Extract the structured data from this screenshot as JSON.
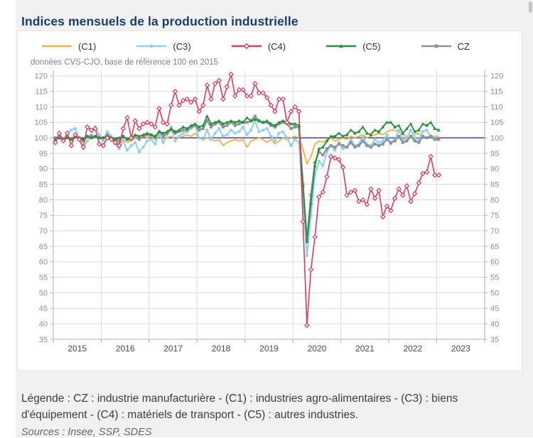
{
  "page": {
    "title": "Indices mensuels de la production industrielle"
  },
  "footer": {
    "legend": "Légende : CZ : industrie manufacturière - (C1) : industries agro-alimentaires - (C3) : biens d'équipement - (C4) : matériels de transport - (C5) : autres industries.",
    "sources": "Sources : Insee, SSP, SDES"
  },
  "scrollbar": {
    "present": true
  },
  "chart_data": {
    "type": "line",
    "subtitle": "données CVS-CJO, base de référence 100 en 2015",
    "x_years": [
      "2015",
      "2016",
      "2017",
      "2018",
      "2019",
      "2020",
      "2021",
      "2022",
      "2023"
    ],
    "months_start": "2015-01",
    "ylim": [
      35,
      121.8
    ],
    "y_tick_min": 35,
    "y_tick_max": 120,
    "y_tick_step": 5,
    "ref_line": {
      "value": 100,
      "color": "#5150ae"
    },
    "grid_color": "#dadada",
    "axis_color": "#b0b0b0",
    "tick_label_color": "#8f8f8f",
    "year_label_color": "#494949",
    "legend_position": "top",
    "draw_order": [
      0,
      1,
      4,
      3,
      2
    ],
    "series": [
      {
        "name": "(C1)",
        "color": "#f7b13c",
        "marker": "none",
        "values": [
          99.5,
          100.0,
          99.0,
          100.0,
          99.5,
          100.5,
          99.5,
          99.0,
          100.0,
          100.5,
          100.0,
          100.5,
          100.0,
          100.5,
          100.0,
          99.0,
          98.0,
          99.5,
          98.5,
          99.0,
          100.0,
          99.5,
          100.5,
          100.0,
          100.5,
          99.5,
          100.5,
          99.0,
          100.0,
          100.5,
          99.5,
          100.0,
          100.5,
          101.0,
          100.5,
          101.5,
          100.0,
          99.5,
          100.0,
          99.5,
          99.0,
          99.5,
          97.5,
          98.5,
          99.0,
          99.5,
          99.0,
          99.5,
          97.0,
          99.0,
          99.5,
          100.0,
          99.5,
          98.5,
          99.5,
          98.0,
          99.0,
          100.0,
          99.5,
          100.0,
          100.5,
          100.0,
          96.5,
          91.5,
          94.0,
          98.0,
          99.0,
          98.5,
          99.5,
          100.0,
          99.0,
          99.5,
          100.0,
          99.5,
          100.5,
          100.0,
          100.5,
          101.0,
          100.0,
          100.5,
          101.0,
          101.5,
          101.0,
          102.0,
          102.5,
          102.5,
          102.0,
          101.0,
          100.5,
          100.0,
          101.0,
          101.5,
          100.5,
          100.0,
          100.5,
          100.5,
          100.5
        ]
      },
      {
        "name": "(C3)",
        "color": "#8ccfee",
        "marker": "circle",
        "values": [
          99.0,
          100.5,
          99.5,
          101.5,
          102.5,
          103.0,
          99.5,
          96.5,
          99.0,
          101.0,
          103.5,
          101.0,
          99.0,
          102.0,
          100.5,
          98.0,
          96.5,
          99.0,
          96.0,
          97.5,
          98.5,
          95.5,
          97.0,
          99.0,
          99.5,
          98.0,
          101.5,
          98.5,
          101.0,
          103.5,
          99.0,
          100.5,
          101.5,
          102.0,
          103.0,
          104.0,
          100.0,
          99.5,
          102.5,
          99.5,
          101.5,
          103.0,
          100.5,
          101.0,
          102.5,
          101.5,
          102.0,
          103.5,
          101.0,
          102.5,
          105.5,
          102.0,
          102.5,
          103.0,
          100.5,
          99.0,
          101.5,
          102.0,
          100.0,
          97.5,
          99.5,
          98.5,
          79.0,
          62.0,
          75.0,
          88.0,
          92.5,
          91.0,
          95.5,
          97.5,
          96.0,
          98.5,
          96.5,
          97.0,
          99.5,
          97.5,
          98.0,
          100.5,
          98.0,
          97.5,
          99.5,
          98.5,
          99.0,
          101.0,
          98.0,
          99.5,
          102.5,
          99.5,
          100.0,
          102.5,
          100.0,
          99.5,
          102.0,
          102.5,
          100.5,
          100.0,
          99.5
        ]
      },
      {
        "name": "(C4)",
        "color": "#df3a5e",
        "marker": "diamond-open",
        "values": [
          98.5,
          101.5,
          99.0,
          101.5,
          97.5,
          101.0,
          99.5,
          97.0,
          103.5,
          102.5,
          103.0,
          98.0,
          97.5,
          100.0,
          99.5,
          98.5,
          97.5,
          103.0,
          106.5,
          100.0,
          105.5,
          103.0,
          104.5,
          105.0,
          104.5,
          103.5,
          109.5,
          105.0,
          104.5,
          110.5,
          115.0,
          110.5,
          112.0,
          112.5,
          111.5,
          112.5,
          108.5,
          110.5,
          117.0,
          112.5,
          117.5,
          118.5,
          112.5,
          116.5,
          120.5,
          113.5,
          115.5,
          115.5,
          113.5,
          113.5,
          117.5,
          114.5,
          114.5,
          113.0,
          110.5,
          108.5,
          112.5,
          112.5,
          105.0,
          108.5,
          110.0,
          108.5,
          73.0,
          39.5,
          57.5,
          68.0,
          81.0,
          82.5,
          87.5,
          94.0,
          93.5,
          93.0,
          90.5,
          81.5,
          82.5,
          83.0,
          79.5,
          80.0,
          78.5,
          83.5,
          80.5,
          83.0,
          74.5,
          78.0,
          76.5,
          80.5,
          83.5,
          81.5,
          84.5,
          79.5,
          82.0,
          85.5,
          88.5,
          89.0,
          94.0,
          88.0,
          88.0
        ]
      },
      {
        "name": "(C5)",
        "color": "#26913a",
        "marker": "triangle",
        "values": [
          99.5,
          100.0,
          99.5,
          100.0,
          99.5,
          100.5,
          100.0,
          99.5,
          100.5,
          100.0,
          100.5,
          100.0,
          100.0,
          100.5,
          100.0,
          99.5,
          100.0,
          100.5,
          99.5,
          100.0,
          101.0,
          100.5,
          101.0,
          101.5,
          101.0,
          100.5,
          102.0,
          101.5,
          102.0,
          103.0,
          102.0,
          102.5,
          103.5,
          103.0,
          104.0,
          104.5,
          103.5,
          104.0,
          107.0,
          104.5,
          105.0,
          105.5,
          104.5,
          105.0,
          105.5,
          105.0,
          105.5,
          105.0,
          106.5,
          105.5,
          106.0,
          105.5,
          105.0,
          105.5,
          104.5,
          104.0,
          105.0,
          105.5,
          105.0,
          104.5,
          104.5,
          104.0,
          84.5,
          66.5,
          79.0,
          91.0,
          96.5,
          97.0,
          99.0,
          100.5,
          100.5,
          101.5,
          100.5,
          101.0,
          102.5,
          101.5,
          102.0,
          103.5,
          101.5,
          101.0,
          102.5,
          102.0,
          103.5,
          105.0,
          105.0,
          103.5,
          104.0,
          101.5,
          103.0,
          104.5,
          102.0,
          102.5,
          104.5,
          104.0,
          105.0,
          103.0,
          102.5
        ]
      },
      {
        "name": "CZ",
        "color": "#8e9398",
        "marker": "square",
        "values": [
          100.0,
          100.0,
          99.5,
          100.5,
          99.5,
          100.5,
          100.0,
          99.0,
          100.5,
          100.5,
          100.5,
          100.0,
          100.0,
          101.0,
          100.0,
          99.5,
          99.0,
          100.5,
          99.5,
          99.5,
          100.5,
          99.5,
          100.5,
          101.0,
          101.0,
          100.0,
          102.0,
          100.5,
          101.5,
          102.5,
          101.5,
          102.0,
          102.5,
          102.5,
          103.5,
          104.0,
          102.5,
          103.0,
          105.5,
          103.5,
          104.5,
          105.0,
          103.5,
          104.0,
          105.0,
          104.0,
          104.5,
          105.0,
          105.0,
          105.5,
          107.0,
          105.5,
          105.0,
          105.0,
          104.0,
          103.5,
          104.5,
          105.0,
          104.5,
          103.0,
          103.5,
          103.5,
          85.0,
          67.0,
          81.5,
          92.0,
          95.5,
          94.5,
          96.5,
          97.5,
          97.0,
          98.0,
          97.5,
          97.0,
          98.5,
          97.0,
          97.5,
          99.0,
          97.5,
          97.0,
          98.0,
          97.5,
          98.0,
          99.5,
          98.5,
          99.0,
          100.5,
          98.5,
          99.0,
          100.5,
          99.0,
          98.5,
          100.5,
          100.0,
          100.5,
          99.5,
          99.5
        ]
      }
    ]
  }
}
